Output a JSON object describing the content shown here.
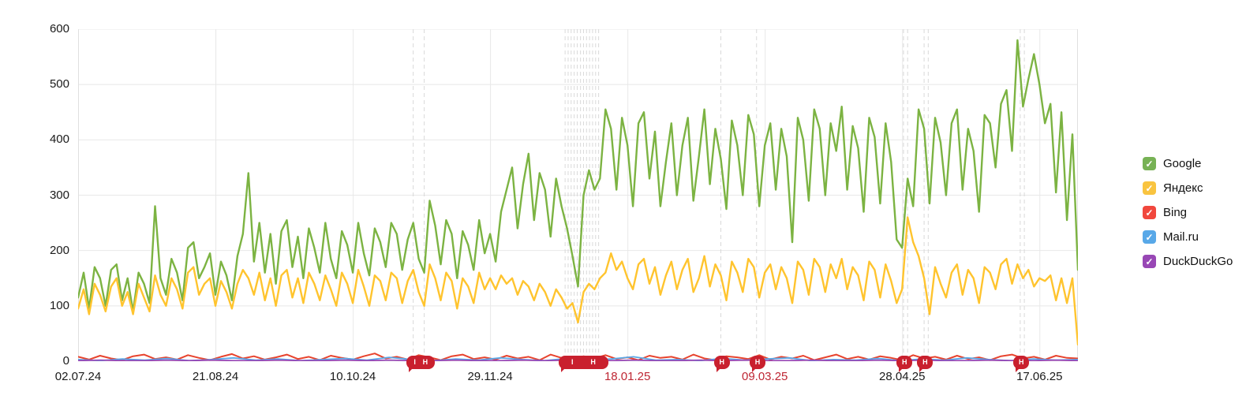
{
  "colors": {
    "grid": "#e8e8e8",
    "plot_border": "#e0e0e0",
    "dashed_event_line": "#d9d9d9",
    "axis_text": "#1a1a1a",
    "highlight_label": "#be2633",
    "marker_bubble": "#c9202e"
  },
  "legend": {
    "checkbox_glyph": "✓",
    "items": [
      {
        "label": "Google",
        "color": "#77b255"
      },
      {
        "label": "Яндекс",
        "color": "#f9c440"
      },
      {
        "label": "Bing",
        "color": "#f1473d"
      },
      {
        "label": "Mail.ru",
        "color": "#58a8e8"
      },
      {
        "label": "DuckDuckGo",
        "color": "#9847b5"
      }
    ]
  },
  "chart_data": {
    "type": "line",
    "title": "",
    "xlabel": "",
    "ylabel": "",
    "grid": true,
    "legend_position": "right",
    "y_axis": {
      "min": 0,
      "max": 600,
      "step": 100,
      "tick_labels": [
        "0",
        "100",
        "200",
        "300",
        "400",
        "500",
        "600"
      ]
    },
    "x_axis": {
      "total_days": 364,
      "tick_labels": [
        {
          "label": "02.07.24",
          "day": 0,
          "highlight": false
        },
        {
          "label": "21.08.24",
          "day": 50,
          "highlight": false
        },
        {
          "label": "10.10.24",
          "day": 100,
          "highlight": false
        },
        {
          "label": "29.11.24",
          "day": 150,
          "highlight": false
        },
        {
          "label": "18.01.25",
          "day": 200,
          "highlight": true
        },
        {
          "label": "09.03.25",
          "day": 250,
          "highlight": true
        },
        {
          "label": "28.04.25",
          "day": 300,
          "highlight": false
        },
        {
          "label": "17.06.25",
          "day": 350,
          "highlight": false
        }
      ]
    },
    "event_dashed_lines_days": [
      122,
      126,
      177.3,
      178.4,
      179.5,
      180.6,
      181.7,
      182.9,
      184,
      185.1,
      186.2,
      187.3,
      188.4,
      189.5,
      234,
      247,
      300.5,
      302,
      308,
      309.5,
      343,
      344.5
    ],
    "event_markers": [
      {
        "from_day": 119.5,
        "to_day": 130,
        "letters": [
          "I",
          "H"
        ]
      },
      {
        "from_day": 175,
        "to_day": 193,
        "letters": [
          "I",
          "H"
        ]
      },
      {
        "from_day": 231.5,
        "to_day": 236.5,
        "letters": [
          "H"
        ]
      },
      {
        "from_day": 244.5,
        "to_day": 249.5,
        "letters": [
          "H"
        ]
      },
      {
        "from_day": 298,
        "to_day": 303,
        "letters": [
          "H"
        ]
      },
      {
        "from_day": 305.5,
        "to_day": 310.5,
        "letters": [
          "H"
        ]
      },
      {
        "from_day": 340.5,
        "to_day": 345.5,
        "letters": [
          "H"
        ]
      }
    ],
    "series": [
      {
        "name": "Google",
        "color": "#7cb342",
        "stroke_width": 2.4,
        "sample_interval_days": 2,
        "values": [
          115,
          160,
          95,
          170,
          150,
          100,
          165,
          175,
          110,
          150,
          90,
          160,
          140,
          105,
          280,
          150,
          120,
          185,
          160,
          110,
          205,
          215,
          150,
          170,
          195,
          120,
          180,
          155,
          110,
          190,
          230,
          340,
          180,
          250,
          160,
          230,
          140,
          235,
          255,
          170,
          225,
          150,
          240,
          205,
          160,
          250,
          185,
          150,
          235,
          210,
          160,
          250,
          195,
          155,
          240,
          215,
          170,
          250,
          230,
          165,
          220,
          250,
          185,
          160,
          290,
          245,
          175,
          255,
          230,
          150,
          235,
          210,
          165,
          255,
          195,
          230,
          180,
          270,
          310,
          350,
          240,
          320,
          375,
          255,
          340,
          310,
          225,
          330,
          280,
          240,
          190,
          135,
          300,
          345,
          310,
          330,
          455,
          420,
          310,
          440,
          390,
          280,
          430,
          450,
          330,
          415,
          280,
          360,
          430,
          300,
          390,
          440,
          290,
          370,
          455,
          320,
          420,
          365,
          275,
          435,
          390,
          300,
          445,
          410,
          280,
          390,
          430,
          310,
          420,
          370,
          215,
          440,
          400,
          290,
          455,
          420,
          300,
          430,
          380,
          460,
          310,
          425,
          385,
          270,
          440,
          405,
          285,
          430,
          360,
          220,
          205,
          330,
          280,
          455,
          420,
          285,
          440,
          395,
          300,
          430,
          455,
          310,
          420,
          380,
          270,
          445,
          430,
          350,
          465,
          490,
          380,
          580,
          460,
          510,
          555,
          500,
          430,
          465,
          305,
          450,
          255,
          410,
          165
        ]
      },
      {
        "name": "Яндекс",
        "color": "#ffc42e",
        "stroke_width": 2.4,
        "sample_interval_days": 2,
        "values": [
          95,
          130,
          85,
          140,
          120,
          90,
          135,
          150,
          100,
          125,
          85,
          140,
          115,
          90,
          155,
          120,
          100,
          150,
          130,
          95,
          160,
          170,
          120,
          140,
          150,
          100,
          145,
          125,
          95,
          140,
          165,
          150,
          120,
          160,
          110,
          150,
          100,
          155,
          165,
          115,
          150,
          105,
          160,
          140,
          110,
          155,
          130,
          100,
          160,
          140,
          105,
          165,
          135,
          100,
          155,
          145,
          110,
          160,
          150,
          105,
          145,
          165,
          125,
          100,
          175,
          150,
          110,
          160,
          145,
          95,
          150,
          135,
          105,
          160,
          130,
          150,
          130,
          155,
          140,
          150,
          120,
          145,
          135,
          110,
          140,
          125,
          100,
          130,
          115,
          95,
          105,
          70,
          125,
          140,
          130,
          150,
          160,
          195,
          165,
          180,
          150,
          130,
          175,
          185,
          140,
          170,
          120,
          155,
          180,
          130,
          165,
          185,
          125,
          150,
          190,
          135,
          175,
          155,
          110,
          180,
          160,
          125,
          185,
          170,
          115,
          160,
          175,
          130,
          170,
          150,
          105,
          180,
          165,
          120,
          185,
          170,
          125,
          175,
          150,
          185,
          130,
          170,
          155,
          110,
          180,
          165,
          115,
          175,
          145,
          105,
          130,
          260,
          215,
          190,
          150,
          85,
          170,
          140,
          115,
          160,
          175,
          120,
          165,
          150,
          105,
          170,
          160,
          130,
          175,
          185,
          140,
          175,
          150,
          165,
          135,
          150,
          145,
          155,
          110,
          150,
          105,
          150,
          30
        ]
      },
      {
        "name": "Bing",
        "color": "#e8432d",
        "stroke_width": 2,
        "sample_interval_days": 4,
        "values": [
          8,
          3,
          10,
          5,
          2,
          9,
          12,
          4,
          7,
          3,
          11,
          6,
          2,
          8,
          13,
          5,
          9,
          3,
          7,
          12,
          4,
          8,
          2,
          10,
          6,
          3,
          9,
          14,
          5,
          8,
          3,
          11,
          7,
          2,
          9,
          12,
          4,
          7,
          3,
          10,
          5,
          8,
          2,
          12,
          6,
          3,
          9,
          5,
          11,
          4,
          7,
          2,
          10,
          6,
          8,
          3,
          12,
          5,
          2,
          9,
          7,
          4,
          11,
          3,
          8,
          5,
          10,
          2,
          7,
          12,
          4,
          8,
          3,
          9,
          6,
          2,
          11,
          5,
          8,
          3,
          10,
          4,
          7,
          2,
          9,
          12,
          5,
          8,
          3,
          10,
          6,
          5
        ]
      },
      {
        "name": "Mail.ru",
        "color": "#58a8e8",
        "stroke_width": 1.8,
        "sample_interval_days": 8,
        "values": [
          3,
          1,
          4,
          2,
          5,
          1,
          3,
          6,
          2,
          4,
          1,
          3,
          5,
          2,
          7,
          3,
          1,
          4,
          2,
          6,
          3,
          1,
          5,
          2,
          4,
          8,
          2,
          3,
          1,
          5,
          2,
          4,
          6,
          1,
          3,
          2,
          5,
          1,
          4,
          2,
          6,
          3,
          1,
          4,
          2,
          3
        ]
      },
      {
        "name": "DuckDuckGo",
        "color": "#9847b5",
        "stroke_width": 1.8,
        "sample_interval_days": 8,
        "values": [
          1,
          2,
          1,
          1,
          2,
          1,
          2,
          1,
          1,
          2,
          1,
          1,
          2,
          1,
          2,
          1,
          1,
          2,
          1,
          1,
          2,
          1,
          2,
          1,
          1,
          2,
          1,
          1,
          2,
          1,
          2,
          1,
          1,
          2,
          1,
          1,
          2,
          1,
          2,
          1,
          1,
          2,
          1,
          1,
          2,
          1
        ]
      }
    ]
  }
}
